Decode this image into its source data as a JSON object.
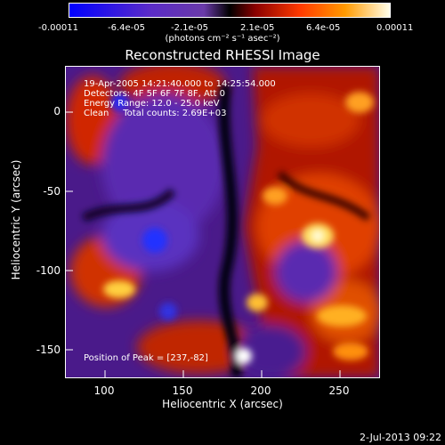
{
  "colorbar": {
    "tick_labels": [
      "-0.00011",
      "-6.4e-05",
      "-2.1e-05",
      "2.1e-05",
      "6.4e-05",
      "0.00011"
    ],
    "units_label": "(photons cm⁻² s⁻¹ asec⁻²)",
    "colors": [
      "#0000ff",
      "#5020c0",
      "#9060c0",
      "#000000",
      "#a00000",
      "#ff4000",
      "#ffa000",
      "#ffffe0"
    ]
  },
  "title": "Reconstructed RHESSI Image",
  "annotations": {
    "line1": "19-Apr-2005 14:21:40.000 to 14:25:54.000",
    "line2": "Detectors: 4F 5F 6F 7F 8F, Att 0",
    "line3": "Energy Range: 12.0 - 25.0 keV",
    "line4": "Clean     Total counts: 2.69E+03",
    "peak": "Position of Peak = [237,-82]"
  },
  "axes": {
    "xlabel": "Heliocentric X (arcsec)",
    "ylabel": "Heliocentric Y (arcsec)",
    "xticks": [
      "100",
      "150",
      "200",
      "250"
    ],
    "yticks": [
      "0",
      "-50",
      "-100",
      "-150"
    ]
  },
  "footer": {
    "date": "2-Jul-2013 09:22"
  }
}
